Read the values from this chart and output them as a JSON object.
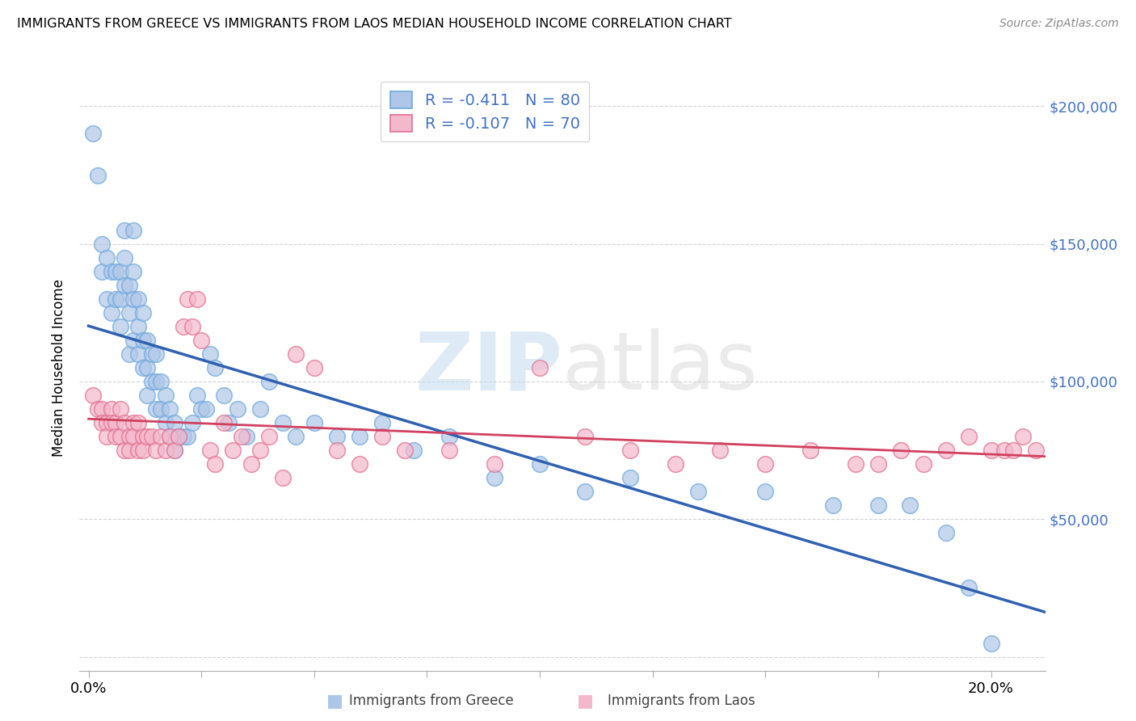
{
  "title": "IMMIGRANTS FROM GREECE VS IMMIGRANTS FROM LAOS MEDIAN HOUSEHOLD INCOME CORRELATION CHART",
  "source": "Source: ZipAtlas.com",
  "ylabel": "Median Household Income",
  "y_ticks": [
    0,
    50000,
    100000,
    150000,
    200000
  ],
  "y_tick_labels": [
    "",
    "$50,000",
    "$100,000",
    "$150,000",
    "$200,000"
  ],
  "x_ticks": [
    0.0,
    0.025,
    0.05,
    0.075,
    0.1,
    0.125,
    0.15,
    0.175,
    0.2
  ],
  "xlim": [
    -0.002,
    0.212
  ],
  "ylim": [
    -5000,
    215000
  ],
  "legend_r_greece": "-0.411",
  "legend_n_greece": "80",
  "legend_r_laos": "-0.107",
  "legend_n_laos": "70",
  "color_greece_fill": "#aec6e8",
  "color_greece_edge": "#6fa8dc",
  "color_laos_fill": "#f4b8cc",
  "color_laos_edge": "#e07090",
  "color_greece_line": "#3060b0",
  "color_laos_line": "#d04060",
  "color_axis_right": "#4472c4",
  "color_legend_text": "#4472c4",
  "watermark_color": "#c8dff0",
  "greece_x": [
    0.001,
    0.002,
    0.003,
    0.003,
    0.004,
    0.004,
    0.005,
    0.005,
    0.006,
    0.006,
    0.007,
    0.007,
    0.007,
    0.008,
    0.008,
    0.008,
    0.009,
    0.009,
    0.009,
    0.01,
    0.01,
    0.01,
    0.01,
    0.011,
    0.011,
    0.011,
    0.012,
    0.012,
    0.012,
    0.013,
    0.013,
    0.013,
    0.014,
    0.014,
    0.015,
    0.015,
    0.015,
    0.016,
    0.016,
    0.017,
    0.017,
    0.018,
    0.018,
    0.019,
    0.019,
    0.02,
    0.021,
    0.022,
    0.023,
    0.024,
    0.025,
    0.026,
    0.027,
    0.028,
    0.03,
    0.031,
    0.033,
    0.035,
    0.038,
    0.04,
    0.043,
    0.046,
    0.05,
    0.055,
    0.06,
    0.065,
    0.072,
    0.08,
    0.09,
    0.1,
    0.11,
    0.12,
    0.135,
    0.15,
    0.165,
    0.175,
    0.182,
    0.19,
    0.195,
    0.2
  ],
  "greece_y": [
    190000,
    175000,
    150000,
    140000,
    145000,
    130000,
    140000,
    125000,
    140000,
    130000,
    140000,
    130000,
    120000,
    155000,
    145000,
    135000,
    135000,
    125000,
    110000,
    155000,
    140000,
    130000,
    115000,
    130000,
    120000,
    110000,
    125000,
    115000,
    105000,
    115000,
    105000,
    95000,
    110000,
    100000,
    110000,
    100000,
    90000,
    100000,
    90000,
    95000,
    85000,
    90000,
    80000,
    85000,
    75000,
    80000,
    80000,
    80000,
    85000,
    95000,
    90000,
    90000,
    110000,
    105000,
    95000,
    85000,
    90000,
    80000,
    90000,
    100000,
    85000,
    80000,
    85000,
    80000,
    80000,
    85000,
    75000,
    80000,
    65000,
    70000,
    60000,
    65000,
    60000,
    60000,
    55000,
    55000,
    55000,
    45000,
    25000,
    5000
  ],
  "laos_x": [
    0.001,
    0.002,
    0.003,
    0.003,
    0.004,
    0.004,
    0.005,
    0.005,
    0.006,
    0.006,
    0.007,
    0.007,
    0.008,
    0.008,
    0.009,
    0.009,
    0.01,
    0.01,
    0.011,
    0.011,
    0.012,
    0.012,
    0.013,
    0.014,
    0.015,
    0.016,
    0.017,
    0.018,
    0.019,
    0.02,
    0.021,
    0.022,
    0.023,
    0.024,
    0.025,
    0.027,
    0.028,
    0.03,
    0.032,
    0.034,
    0.036,
    0.038,
    0.04,
    0.043,
    0.046,
    0.05,
    0.055,
    0.06,
    0.065,
    0.07,
    0.08,
    0.09,
    0.1,
    0.11,
    0.12,
    0.13,
    0.14,
    0.15,
    0.16,
    0.17,
    0.175,
    0.18,
    0.185,
    0.19,
    0.195,
    0.2,
    0.203,
    0.205,
    0.207,
    0.21
  ],
  "laos_y": [
    95000,
    90000,
    90000,
    85000,
    85000,
    80000,
    90000,
    85000,
    85000,
    80000,
    90000,
    80000,
    85000,
    75000,
    80000,
    75000,
    85000,
    80000,
    85000,
    75000,
    80000,
    75000,
    80000,
    80000,
    75000,
    80000,
    75000,
    80000,
    75000,
    80000,
    120000,
    130000,
    120000,
    130000,
    115000,
    75000,
    70000,
    85000,
    75000,
    80000,
    70000,
    75000,
    80000,
    65000,
    110000,
    105000,
    75000,
    70000,
    80000,
    75000,
    75000,
    70000,
    105000,
    80000,
    75000,
    70000,
    75000,
    70000,
    75000,
    70000,
    70000,
    75000,
    70000,
    75000,
    80000,
    75000,
    75000,
    75000,
    80000,
    75000
  ]
}
